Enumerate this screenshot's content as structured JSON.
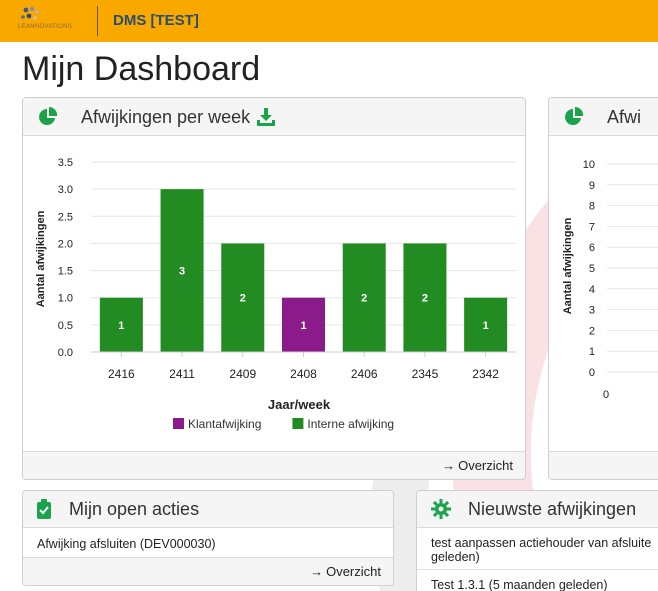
{
  "header": {
    "logo_text": "LEANNOVATIONS",
    "app_title": "DMS [TEST]"
  },
  "page": {
    "title": "Mijn Dashboard"
  },
  "panel_week": {
    "title": "Afwijkingen per week",
    "footer_link": "Overzicht",
    "arrow": "→"
  },
  "panel_right": {
    "title": "Afwi"
  },
  "panel_actions": {
    "title": "Mijn open acties",
    "items": [
      "Afwijking afsluiten (DEV000030)"
    ],
    "footer_link": "Overzicht",
    "arrow": "→"
  },
  "panel_newest": {
    "title": "Nieuwste afwijkingen",
    "items": [
      "test aanpassen actiehouder van afsluite",
      "geleden)",
      "Test 1.3.1 (5 maanden geleden)"
    ]
  },
  "colors": {
    "brand": "#f9a800",
    "title_blue": "#2a4e6e",
    "bar_green": "#228b22",
    "bar_purple": "#8b1a8b",
    "icon_green": "#1aa34a",
    "deco_red": "#e61b2b"
  },
  "chart_data": [
    {
      "type": "bar",
      "categories": [
        "2416",
        "2411",
        "2409",
        "2408",
        "2406",
        "2345",
        "2342"
      ],
      "series": [
        {
          "name": "Klantafwijking",
          "color": "#8b1a8b",
          "values": [
            0,
            0,
            0,
            1,
            0,
            0,
            0
          ]
        },
        {
          "name": "Interne afwijking",
          "color": "#228b22",
          "values": [
            1,
            3,
            2,
            0,
            2,
            2,
            1
          ]
        }
      ],
      "yticks": [
        "0.0",
        "0.5",
        "1.0",
        "1.5",
        "2.0",
        "2.5",
        "3.0",
        "3.5"
      ],
      "ylim": [
        0,
        3.5
      ],
      "xlabel": "Jaar/week",
      "ylabel": "Aantal afwijkingen",
      "legend": "bottom",
      "grid": true
    },
    {
      "type": "bar",
      "categories": [],
      "yticks": [
        "0",
        "1",
        "2",
        "3",
        "4",
        "5",
        "6",
        "7",
        "8",
        "9",
        "10"
      ],
      "x_first_tick": "0",
      "ylim": [
        0,
        10
      ],
      "ylabel": "Aantal afwijkingen",
      "grid": true
    }
  ]
}
